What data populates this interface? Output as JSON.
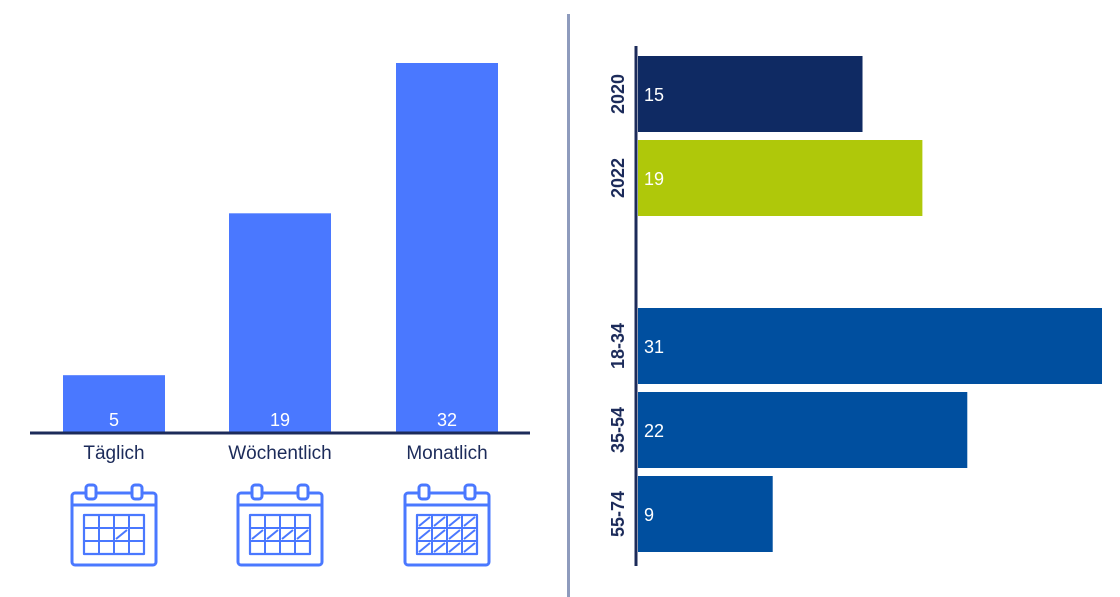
{
  "chart_data": [
    {
      "type": "bar",
      "orientation": "vertical",
      "categories": [
        "Täglich",
        "Wöchentlich",
        "Monatlich"
      ],
      "values": [
        5,
        19,
        32
      ],
      "ylim": [
        0,
        32
      ],
      "grid": false,
      "colors": {
        "bar": "#4a78ff",
        "baseline": "#1c2b5a",
        "label": "#1c2b5a",
        "value_label": "#ffffff"
      },
      "icons": [
        "calendar-daily-icon",
        "calendar-weekly-icon",
        "calendar-monthly-icon"
      ]
    },
    {
      "type": "bar",
      "orientation": "horizontal",
      "groups": [
        {
          "categories": [
            "2020",
            "2022"
          ],
          "values": [
            15,
            19
          ],
          "colors": [
            "#0f2a63",
            "#afc80a"
          ]
        },
        {
          "categories": [
            "18-34",
            "35-54",
            "55-74"
          ],
          "values": [
            31,
            22,
            9
          ],
          "colors": [
            "#004f9f",
            "#004f9f",
            "#004f9f"
          ]
        }
      ],
      "xlim": [
        0,
        31
      ],
      "grid": false,
      "colors": {
        "axis": "#1c2b5a",
        "label": "#1c2b5a",
        "value_label": "#ffffff"
      }
    }
  ]
}
